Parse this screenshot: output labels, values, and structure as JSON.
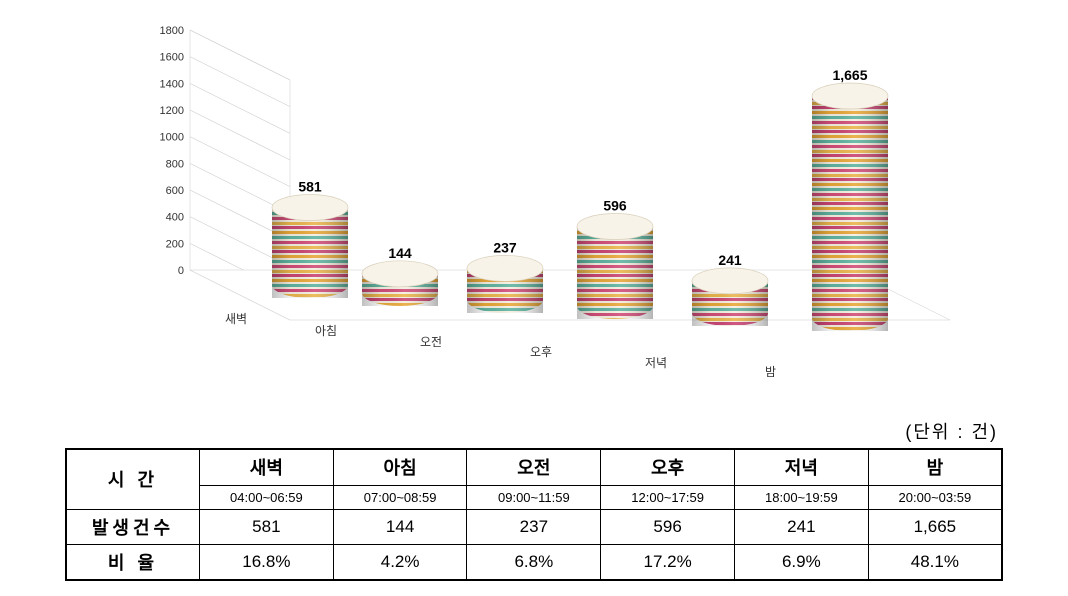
{
  "chart": {
    "type": "3d-cylinder-bar",
    "categories": [
      "새벽",
      "아침",
      "오전",
      "오후",
      "저녁",
      "밤"
    ],
    "values": [
      581,
      144,
      237,
      596,
      241,
      1665
    ],
    "value_labels": [
      "581",
      "144",
      "237",
      "596",
      "241",
      "1,665"
    ],
    "ylim": [
      0,
      1800
    ],
    "ytick_step": 200,
    "yticks": [
      "0",
      "200",
      "400",
      "600",
      "800",
      "1000",
      "1200",
      "1400",
      "1600",
      "1800"
    ],
    "stripe_colors": [
      "#c94574",
      "#e8a83a",
      "#5fb4a0",
      "#d14d7a",
      "#eab54d",
      "#6cc5b0"
    ],
    "cylinder_base": "#f0e8d8",
    "floor_color": "#ffffff",
    "grid_color": "#cccccc",
    "back_wall_color": "#ffffff",
    "axis_fontsize": 11,
    "label_fontsize": 12,
    "value_label_fontsize": 14
  },
  "unit_label": "(단위 : 건)",
  "table": {
    "row_header_time": "시     간",
    "row_header_count": "발생건수",
    "row_header_ratio": "비     율",
    "columns": [
      {
        "name": "새벽",
        "range": "04:00~06:59",
        "count": "581",
        "ratio": "16.8%"
      },
      {
        "name": "아침",
        "range": "07:00~08:59",
        "count": "144",
        "ratio": "4.2%"
      },
      {
        "name": "오전",
        "range": "09:00~11:59",
        "count": "237",
        "ratio": "6.8%"
      },
      {
        "name": "오후",
        "range": "12:00~17:59",
        "count": "596",
        "ratio": "17.2%"
      },
      {
        "name": "저녁",
        "range": "18:00~19:59",
        "count": "241",
        "ratio": "6.9%"
      },
      {
        "name": "밤",
        "range": "20:00~03:59",
        "count": "1,665",
        "ratio": "48.1%"
      }
    ]
  }
}
